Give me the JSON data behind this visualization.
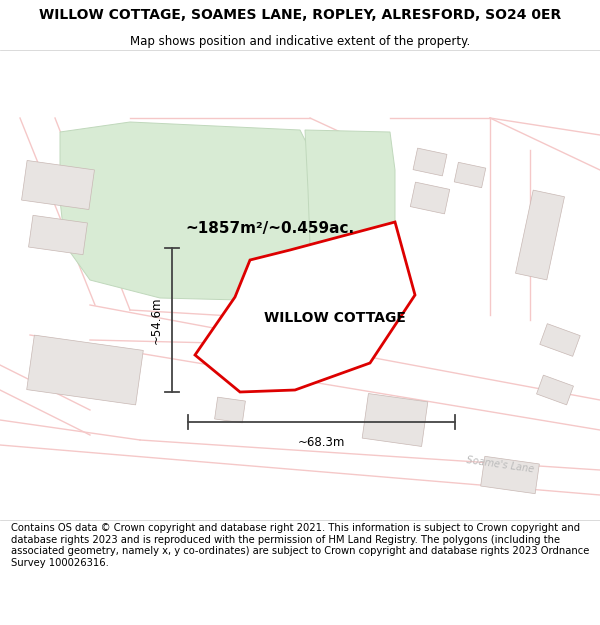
{
  "title": "WILLOW COTTAGE, SOAMES LANE, ROPLEY, ALRESFORD, SO24 0ER",
  "subtitle": "Map shows position and indicative extent of the property.",
  "footer": "Contains OS data © Crown copyright and database right 2021. This information is subject to Crown copyright and database rights 2023 and is reproduced with the permission of HM Land Registry. The polygons (including the associated geometry, namely x, y co-ordinates) are subject to Crown copyright and database rights 2023 Ordnance Survey 100026316.",
  "map_bg": "#fafafa",
  "road_color": "#f5c8c8",
  "building_fill": "#e8e4e2",
  "building_edge": "#c8b8b4",
  "green_fill": "#d8ebd4",
  "green_edge": "#c0d8bc",
  "plot_edge": "#dd0000",
  "plot_fill": "#ffffff",
  "dim_color": "#444444",
  "label_color": "#000000",
  "road_label_color": "#bbbbbb",
  "title_fontsize": 10,
  "subtitle_fontsize": 8.5,
  "footer_fontsize": 7.2,
  "area_label": "~1857m²/~0.459ac.",
  "width_label": "~68.3m",
  "height_label": "~54.6m",
  "plot_label": "WILLOW COTTAGE",
  "road_label": "Soame's Lane"
}
